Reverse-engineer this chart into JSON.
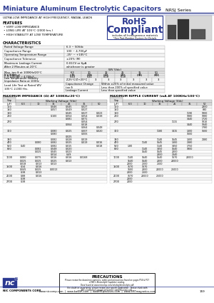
{
  "title": "Miniature Aluminum Electrolytic Capacitors",
  "series": "NRSJ Series",
  "subtitle": "ULTRA LOW IMPEDANCE AT HIGH FREQUENCY, RADIAL LEADS",
  "features_title": "FEATURES",
  "features": [
    "VERY LOW IMPEDANCE",
    "LONG LIFE AT 105°C (2000 hrs.)",
    "HIGH STABILITY AT LOW TEMPERATURE"
  ],
  "rohs_line1": "RoHS",
  "rohs_line2": "Compliant",
  "rohs_sub1": "includes all homogeneous materials",
  "rohs_sub2": "*See Part Number System for Details",
  "char_title": "CHARACTERISTICS",
  "char_simple": [
    [
      "Rated Voltage Range",
      "6.3 ~ 50Vdc"
    ],
    [
      "Capacitance Range",
      "100 ~ 4,700μF"
    ],
    [
      "Operating Temperature Range",
      "-25° ~ +105°C"
    ],
    [
      "Capacitance Tolerance",
      "±20% (M)"
    ],
    [
      "Maximum Leakage Current\nAfter 2 Minutes at 20°C",
      "0.01CV or 6μA\nwhichever is greater"
    ]
  ],
  "tan_label": "Max. tan δ at 100KHz/20°C",
  "tan_wv_header": "WV (Vdc)",
  "tan_vdc_vals": [
    "6.3",
    "10",
    "16",
    "25",
    "35",
    "50"
  ],
  "tan_sub_rows": [
    [
      "5 V (Vdc)",
      "8",
      "1.5",
      "20",
      "20",
      "44",
      "4.0"
    ],
    [
      "C ≤ 1,500μF",
      "0.26",
      "0.28",
      "0.15",
      "0.15",
      "0.14",
      "0.15"
    ],
    [
      "C > 2,000μF ~ 4,700μF",
      "0.44",
      "0.41",
      "0.18",
      "0.18",
      "-",
      "-"
    ]
  ],
  "low_temp_label": "Low Temperature Stability\nImpedance Ratio at 100Hz",
  "low_temp_val": "Z-25°C/Z+20°C",
  "low_temp_cols": [
    "3",
    "3",
    "3",
    "3",
    "3",
    "3"
  ],
  "load_life_label": "Load Life Test at Rated WV\n105°C 2,000 Hrs.",
  "load_life_rows": [
    [
      "Capacitance Change",
      "Within ±25% of initial measured value"
    ],
    [
      "tan δ",
      "Less than 200% of specified value"
    ],
    [
      "Leakage Current",
      "Less than specified value"
    ]
  ],
  "imp_title": "MAXIMUM IMPEDANCE (Ω) AT 100KHz/20°C)",
  "rip_title": "MAXIMUM RIPPLE CURRENT (mA AT 100KHz/100°C)",
  "imp_vdc": [
    "6.3",
    "10",
    "16",
    "25",
    "35",
    "50"
  ],
  "rip_vdc": [
    "6.3",
    "10",
    "16",
    "25",
    "35",
    "50"
  ],
  "imp_data": [
    [
      "100",
      "-",
      "-",
      "0.046",
      "0.045",
      "0.027",
      "-"
    ],
    [
      "150",
      "-",
      "-",
      "0.057",
      "0.049",
      "0.027",
      "-"
    ],
    [
      "180",
      "-",
      "-",
      "-",
      "0.045",
      "0.027",
      "0.023"
    ],
    [
      "220",
      "-",
      "-",
      "0.100",
      "0.054",
      "0.054",
      "0.038"
    ],
    [
      "",
      "-",
      "-",
      "-",
      "0.081",
      "0.071",
      "-"
    ],
    [
      "270",
      "-",
      "-",
      "-",
      "-",
      "0.054",
      "-"
    ],
    [
      "",
      "-",
      "-",
      "-",
      "0.064",
      "0.018",
      "-"
    ],
    [
      "",
      "-",
      "-",
      "-",
      "-",
      "0.064",
      "0.048"
    ],
    [
      "300",
      "-",
      "-",
      "0.080",
      "0.025",
      "0.007",
      "0.020"
    ],
    [
      "",
      "-",
      "-",
      "0.080",
      "-",
      "0.006",
      "-"
    ],
    [
      "",
      "-",
      "-",
      "-",
      "0.025",
      "-",
      "-"
    ],
    [
      "390",
      "-",
      "-",
      "0.082",
      "0.028",
      "0.019",
      "-"
    ],
    [
      "470",
      "-",
      "0.080",
      "0.082",
      "0.025",
      "0.019",
      "0.016"
    ],
    [
      "560",
      "0.40",
      "-",
      "0.082",
      "0.015",
      "-",
      "0.018"
    ],
    [
      "680",
      "-",
      "0.082",
      "0.048",
      "0.020",
      "-",
      "-"
    ],
    [
      "",
      "-",
      "0.025",
      "0.045",
      "0.023",
      "-",
      "-"
    ],
    [
      "",
      "-",
      "-",
      "0.014",
      "0.49",
      "-",
      "-"
    ],
    [
      "1000",
      "0.080",
      "0.075",
      "0.016",
      "0.016",
      "0.0168",
      "-"
    ],
    [
      "",
      "0.025",
      "0.025",
      "0.025",
      "0.013",
      "-",
      "-"
    ],
    [
      "",
      "0.018",
      "0.013",
      "0.013",
      "-",
      "-",
      "-"
    ],
    [
      "1500",
      "0.34",
      "0.016",
      "-",
      "-",
      "-",
      "-"
    ],
    [
      "",
      "0.045",
      "0.025",
      "0.0013",
      "-",
      "-",
      "-"
    ],
    [
      "",
      "0.38",
      "0.013",
      "-",
      "-",
      "-",
      "-"
    ],
    [
      "2000",
      "0.88",
      "0.016",
      "-",
      "-",
      "-",
      "-"
    ],
    [
      "",
      "0.38",
      "-",
      "-",
      "-",
      "-",
      "-"
    ],
    [
      "2700",
      "0.38",
      "-",
      "-",
      "-",
      "-",
      "-"
    ]
  ],
  "rip_data": [
    [
      "100",
      "-",
      "-",
      "-",
      "-",
      "-",
      "2800"
    ],
    [
      "150",
      "-",
      "-",
      "-",
      "-",
      "-",
      "880"
    ],
    [
      "180",
      "-",
      "-",
      "-",
      "-",
      "1190",
      "1000"
    ],
    [
      "220",
      "-",
      "-",
      "-",
      "-",
      "1080",
      "1080"
    ],
    [
      "",
      "-",
      "-",
      "-",
      "-",
      "1440",
      "1720"
    ],
    [
      "270",
      "-",
      "-",
      "-",
      "1115",
      "-",
      "1010"
    ],
    [
      "",
      "-",
      "-",
      "-",
      "-",
      "1440",
      "1040"
    ],
    [
      "",
      "-",
      "-",
      "-",
      "-",
      "-",
      "1780"
    ],
    [
      "300",
      "-",
      "-",
      "1180",
      "1415",
      "1300",
      "1600"
    ],
    [
      "",
      "-",
      "-",
      "-",
      "-",
      "1600",
      "-"
    ],
    [
      "",
      "-",
      "-",
      "-",
      "-",
      "-",
      "-"
    ],
    [
      "390",
      "-",
      "-",
      "1140",
      "1545",
      "1300",
      "2180"
    ],
    [
      "470",
      "-",
      "1140",
      "1545",
      "1300",
      "2180",
      "-"
    ],
    [
      "560",
      "1.80",
      "-",
      "1140",
      "1450",
      "1750",
      "-"
    ],
    [
      "680",
      "-",
      "1140",
      "1450",
      "1540",
      "1800",
      "-"
    ],
    [
      "",
      "-",
      "1540",
      "1545",
      "2000",
      "-",
      "-"
    ],
    [
      "",
      "-",
      "-",
      "2000",
      "2140",
      "-",
      "-"
    ],
    [
      "1000",
      "1140",
      "1540",
      "1540",
      "1670",
      "20000",
      "-"
    ],
    [
      "",
      "1540",
      "1540",
      "2000",
      "20000",
      "-",
      "-"
    ],
    [
      "",
      "2000",
      "2500",
      "2500",
      "-",
      "-",
      "-"
    ],
    [
      "1500",
      "1670",
      "1670",
      "-",
      "-",
      "-",
      "-"
    ],
    [
      "",
      "1600",
      "2000",
      "20000",
      "25000",
      "-",
      "-"
    ],
    [
      "",
      "2000",
      "2500",
      "-",
      "-",
      "-",
      "-"
    ],
    [
      "2000",
      "1670",
      "20000",
      "25000",
      "-",
      "-",
      "-"
    ],
    [
      "",
      "2000",
      "-",
      "-",
      "-",
      "-",
      "-"
    ],
    [
      "2700",
      "2000",
      "-",
      "-",
      "-",
      "-",
      "-"
    ]
  ],
  "precautions_title": "PRECAUTIONS",
  "precautions_text": [
    "Please review the datasheet contents, safety and precautions found on pages P16 & P17",
    "of NIC's Electrolytic Capacitor catalog.",
    "Data found at www.niccomp.com/catalog/electrolytic.pdf",
    "If in doubt or uncertainty, please review your specific application - please check with",
    "NIC's technical support personnel: smt@niccomp.com"
  ],
  "nic_name": "NIC COMPONENTS CORP.",
  "nic_urls": "www.niccomp.com  |  www.kwESR.com  |  www.RFpassives.com  |  www.SMTmagnetics.com",
  "page_num": "159",
  "blue": "#2b3990",
  "bg": "#ffffff",
  "black": "#000000",
  "gray1": "#cccccc",
  "gray2": "#e8e8e8",
  "gray3": "#f4f4f4"
}
